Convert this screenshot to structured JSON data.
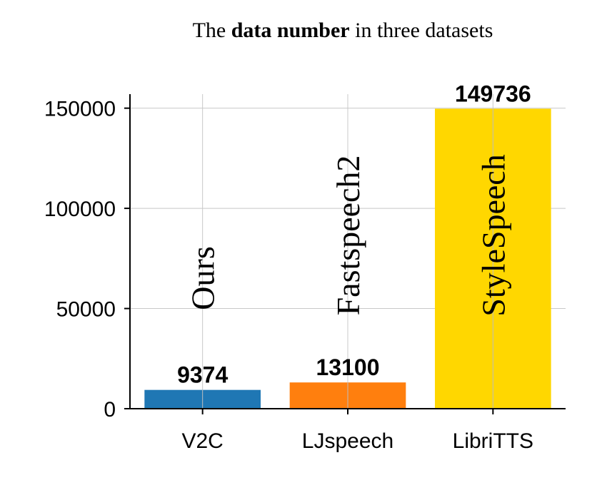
{
  "chart_data": {
    "type": "bar",
    "title": {
      "prefix": "The ",
      "bold": "data number",
      "suffix": " in three datasets"
    },
    "categories": [
      "V2C",
      "LJspeech",
      "LibriTTS"
    ],
    "values": [
      9374,
      13100,
      149736
    ],
    "value_labels": [
      "9374",
      "13100",
      "149736"
    ],
    "bar_annotations": [
      "Ours",
      "Fastspeech2",
      "StyleSpeech"
    ],
    "colors": [
      "#1f77b4",
      "#ff7f0e",
      "#ffd700"
    ],
    "y_ticks": [
      0,
      50000,
      100000,
      150000
    ],
    "ylim": [
      0,
      157000
    ],
    "grid": true,
    "xlabel": "",
    "ylabel": ""
  }
}
